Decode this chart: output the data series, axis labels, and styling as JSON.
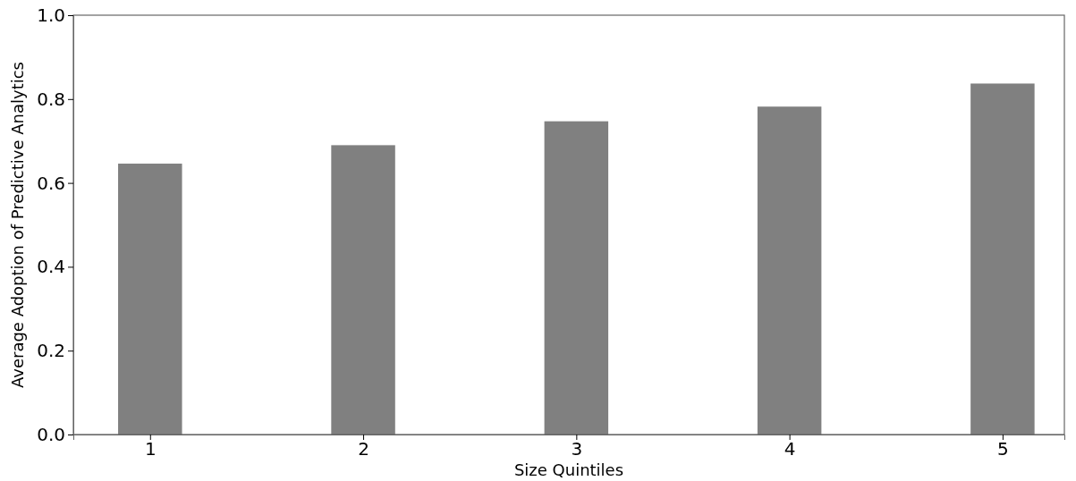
{
  "chart_data": {
    "type": "bar",
    "xlabel": "Size Quintiles",
    "ylabel": "Average Adoption of Predictive Analytics",
    "categories": [
      "1",
      "2",
      "3",
      "4",
      "5"
    ],
    "values": [
      0.646,
      0.69,
      0.747,
      0.782,
      0.837
    ],
    "color": "#808080",
    "ylim": [
      0,
      1
    ],
    "yticks": [
      {
        "value": 0,
        "label": "0.0"
      },
      {
        "value": 0.2,
        "label": "0.2"
      },
      {
        "value": 0.4,
        "label": "0.4"
      },
      {
        "value": 0.6,
        "label": "0.6"
      },
      {
        "value": 0.8,
        "label": "0.8"
      },
      {
        "value": 1,
        "label": "1.0"
      }
    ],
    "grid": false
  }
}
